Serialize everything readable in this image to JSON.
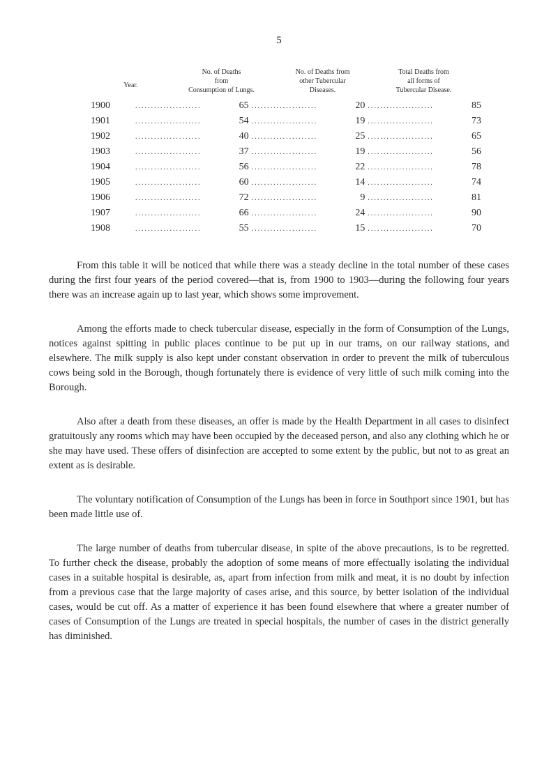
{
  "page_number": "5",
  "table": {
    "headers": {
      "year": "Year.",
      "col1_line1": "No. of Deaths",
      "col1_line2": "from",
      "col1_line3": "Consumption of Lungs.",
      "col2_line1": "No. of Deaths from",
      "col2_line2": "other Tubercular",
      "col2_line3": "Diseases.",
      "col3_line1": "Total Deaths from",
      "col3_line2": "all forms of",
      "col3_line3": "Tubercular Disease."
    },
    "rows": [
      {
        "year": "1900",
        "val1": "65",
        "val2": "20",
        "val3": "85"
      },
      {
        "year": "1901",
        "val1": "54",
        "val2": "19",
        "val3": "73"
      },
      {
        "year": "1902",
        "val1": "40",
        "val2": "25",
        "val3": "65"
      },
      {
        "year": "1903",
        "val1": "37",
        "val2": "19",
        "val3": "56"
      },
      {
        "year": "1904",
        "val1": "56",
        "val2": "22",
        "val3": "78"
      },
      {
        "year": "1905",
        "val1": "60",
        "val2": "14",
        "val3": "74"
      },
      {
        "year": "1906",
        "val1": "72",
        "val2": "9",
        "val3": "81"
      },
      {
        "year": "1907",
        "val1": "66",
        "val2": "24",
        "val3": "90"
      },
      {
        "year": "1908",
        "val1": "55",
        "val2": "15",
        "val3": "70"
      }
    ],
    "dots": "....................."
  },
  "paragraphs": {
    "p1": "From this table it will be noticed that while there was a steady decline in the total number of these cases during the first four years of the period covered—that is, from 1900 to 1903—during the following four years there was an increase again up to last year, which shows some improvement.",
    "p2": "Among the efforts made to check tubercular disease, especially in the form of Consumption of the Lungs, notices against spitting in public places continue to be put up in our trams, on our railway stations, and elsewhere. The milk supply is also kept under constant observation in order to prevent the milk of tuberculous cows being sold in the Borough, though fortunately there is evidence of very little of such milk coming into the Borough.",
    "p3": "Also after a death from these diseases, an offer is made by the Health Depart­ment in all cases to disinfect gratuitously any rooms which may have been occupied by the deceased person, and also any clothing which he or she may have used. These offers of disinfection are accepted to some extent by the public, but not to as great an extent as is desirable.",
    "p4": "The voluntary notification of Consumption of the Lungs has been in force in Southport since 1901, but has been made little use of.",
    "p5": "The large number of deaths from tubercular disease, in spite of the above precautions, is to be regretted. To further check the disease, probably the adoption of some means of more effectually isolating the individual cases in a suitable hospital is desirable, as, apart from infection from milk and meat, it is no doubt by infection from a previous case that the large majority of cases arise, and this source, by better isolation of the individual cases, would be cut off. As a matter of experience it has been found elsewhere that where a greater number of cases of Consumption of the Lungs are treated in special hospitals, the number of cases in the district generally has diminished."
  }
}
